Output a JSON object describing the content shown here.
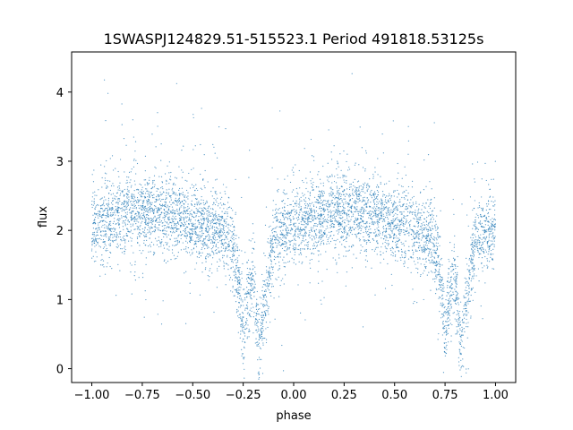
{
  "chart_data": {
    "type": "scatter",
    "title": "1SWASPJ124829.51-515523.1 Period 491818.53125s",
    "xlabel": "phase",
    "ylabel": "flux",
    "xlim": [
      -1.1,
      1.1
    ],
    "ylim": [
      -0.2,
      4.58
    ],
    "x_ticks": [
      -1.0,
      -0.75,
      -0.5,
      -0.25,
      0.0,
      0.25,
      0.5,
      0.75,
      1.0
    ],
    "x_tick_labels": [
      "−1.00",
      "−0.75",
      "−0.50",
      "−0.25",
      "0.00",
      "0.25",
      "0.50",
      "0.75",
      "1.00"
    ],
    "y_ticks": [
      0,
      1,
      2,
      3,
      4
    ],
    "y_tick_labels": [
      "0",
      "1",
      "2",
      "3",
      "4"
    ],
    "grid": false,
    "marker_color": "#1f77b4",
    "series": [
      {
        "profile_points": [
          {
            "phase": -1.0,
            "flux": 2.05
          },
          {
            "phase": -0.9,
            "flux": 2.2
          },
          {
            "phase": -0.8,
            "flux": 2.25
          },
          {
            "phase": -0.7,
            "flux": 2.25
          },
          {
            "phase": -0.6,
            "flux": 2.25
          },
          {
            "phase": -0.5,
            "flux": 2.1
          },
          {
            "phase": -0.4,
            "flux": 2.0
          },
          {
            "phase": -0.32,
            "flux": 1.95
          },
          {
            "phase": -0.27,
            "flux": 1.3
          },
          {
            "phase": -0.25,
            "flux": 0.5
          },
          {
            "phase": -0.23,
            "flux": 1.0
          },
          {
            "phase": -0.2,
            "flux": 1.3
          },
          {
            "phase": -0.17,
            "flux": 0.3
          },
          {
            "phase": -0.15,
            "flux": 0.8
          },
          {
            "phase": -0.1,
            "flux": 1.9
          },
          {
            "phase": 0.0,
            "flux": 2.05
          },
          {
            "phase": 0.1,
            "flux": 2.2
          },
          {
            "phase": 0.2,
            "flux": 2.25
          },
          {
            "phase": 0.3,
            "flux": 2.25
          },
          {
            "phase": 0.4,
            "flux": 2.25
          },
          {
            "phase": 0.5,
            "flux": 2.1
          },
          {
            "phase": 0.6,
            "flux": 2.0
          },
          {
            "phase": 0.68,
            "flux": 1.95
          },
          {
            "phase": 0.73,
            "flux": 1.3
          },
          {
            "phase": 0.75,
            "flux": 0.5
          },
          {
            "phase": 0.77,
            "flux": 1.0
          },
          {
            "phase": 0.8,
            "flux": 1.3
          },
          {
            "phase": 0.83,
            "flux": 0.3
          },
          {
            "phase": 0.85,
            "flux": 0.8
          },
          {
            "phase": 0.9,
            "flux": 1.9
          },
          {
            "phase": 1.0,
            "flux": 2.05
          }
        ],
        "scatter_sigma": 0.28
      }
    ]
  }
}
